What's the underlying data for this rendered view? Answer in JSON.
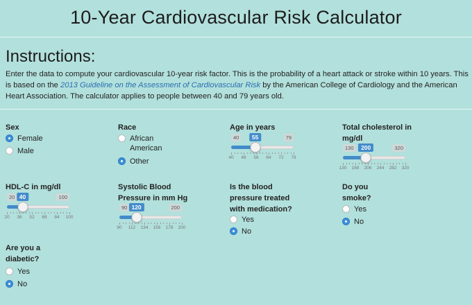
{
  "title": "10-Year Cardiovascular Risk Calculator",
  "instructions": {
    "heading": "Instructions:",
    "text_before": "Enter the data to compute your cardiovascular 10-year risk factor. This is the probability of a heart attack or stroke within 10 years. This is based on the ",
    "link_text": "2013 Guideline on the Assessment of Cardiovascular Risk",
    "text_after": " by the American College of Cardiology and the American Heart Association. The calculator applies to people between 40 and 79 years old."
  },
  "sex": {
    "label": "Sex",
    "options": [
      "Female",
      "Male"
    ],
    "selected": "Female"
  },
  "race": {
    "label": "Race",
    "options": [
      "African American",
      "Other"
    ],
    "selected": "Other"
  },
  "age": {
    "label": "Age in years",
    "min": 40,
    "max": 79,
    "value": 55,
    "ticks": [
      "40",
      "48",
      "56",
      "64",
      "72",
      "79"
    ]
  },
  "cholesterol": {
    "label": "Total cholesterol in mg/dl",
    "min": 130,
    "max": 320,
    "value": 200,
    "ticks": [
      "130",
      "168",
      "206",
      "244",
      "282",
      "320"
    ]
  },
  "hdl": {
    "label": "HDL-C in mg/dl",
    "min": 20,
    "max": 100,
    "value": 40,
    "ticks": [
      "20",
      "36",
      "52",
      "68",
      "84",
      "100"
    ]
  },
  "bp": {
    "label": "Systolic Blood Pressure in mm Hg",
    "min": 90,
    "max": 200,
    "value": 120,
    "ticks": [
      "90",
      "112",
      "134",
      "156",
      "178",
      "200"
    ]
  },
  "treated": {
    "label": "Is the blood pressure treated with medication?",
    "options": [
      "Yes",
      "No"
    ],
    "selected": "No"
  },
  "smoker": {
    "label": "Do you smoke?",
    "options": [
      "Yes",
      "No"
    ],
    "selected": "No"
  },
  "diabetic": {
    "label": "Are you a diabetic?",
    "options": [
      "Yes",
      "No"
    ],
    "selected": "No"
  },
  "colors": {
    "accent": "#428bca",
    "background": "#b2e0dc"
  }
}
